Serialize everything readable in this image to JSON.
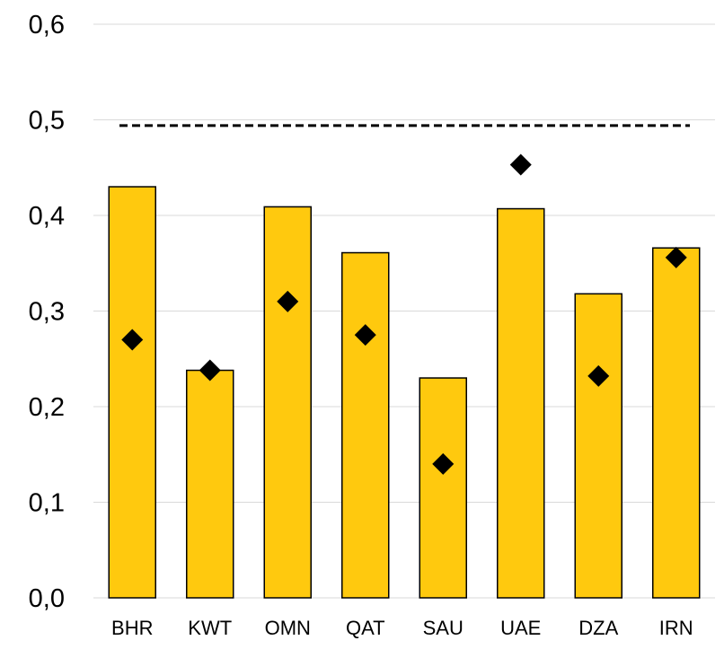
{
  "chart_data": {
    "type": "bar",
    "categories": [
      "BHR",
      "KWT",
      "OMN",
      "QAT",
      "SAU",
      "UAE",
      "DZA",
      "IRN"
    ],
    "series": [
      {
        "kind": "bar",
        "values": [
          0.43,
          0.238,
          0.409,
          0.361,
          0.23,
          0.407,
          0.318,
          0.366
        ],
        "color": "#ffc90e"
      },
      {
        "kind": "marker",
        "marker": "diamond",
        "values": [
          0.27,
          0.238,
          0.31,
          0.275,
          0.14,
          0.453,
          0.232,
          0.356
        ],
        "color": "#000000"
      }
    ],
    "reference_line": {
      "value": 0.494,
      "style": "dashed",
      "color": "#000000"
    },
    "yticks": [
      "0,0",
      "0,1",
      "0,2",
      "0,3",
      "0,4",
      "0,5",
      "0,6"
    ],
    "ytick_values": [
      0,
      0.1,
      0.2,
      0.3,
      0.4,
      0.5,
      0.6
    ],
    "ylim": [
      0,
      0.6
    ],
    "title": "",
    "xlabel": "",
    "ylabel": "",
    "grid": true,
    "legend": "none"
  }
}
